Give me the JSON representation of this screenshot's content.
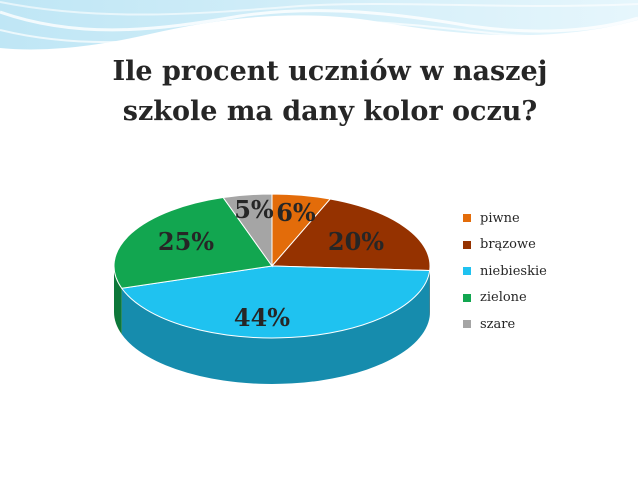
{
  "colors": {
    "piwne": "#e36c0a",
    "brazowe": "#953200",
    "niebieskie": "#1fc2f0",
    "zielone": "#12a650",
    "szare": "#a5a5a5"
  },
  "title_lines": [
    "Ile procent uczniów w naszej",
    "szkole ma dany kolor oczu?"
  ],
  "chart_data": {
    "type": "pie",
    "title": "Ile procent uczniów w naszej szkole ma dany kolor oczu?",
    "categories": [
      "piwne",
      "brązowe",
      "niebieskie",
      "zielone",
      "szare"
    ],
    "values": [
      6,
      20,
      44,
      25,
      5
    ],
    "data_labels": [
      "6%",
      "20%",
      "44%",
      "25%",
      "5%"
    ],
    "style": "3d-pie",
    "legend_position": "right"
  }
}
